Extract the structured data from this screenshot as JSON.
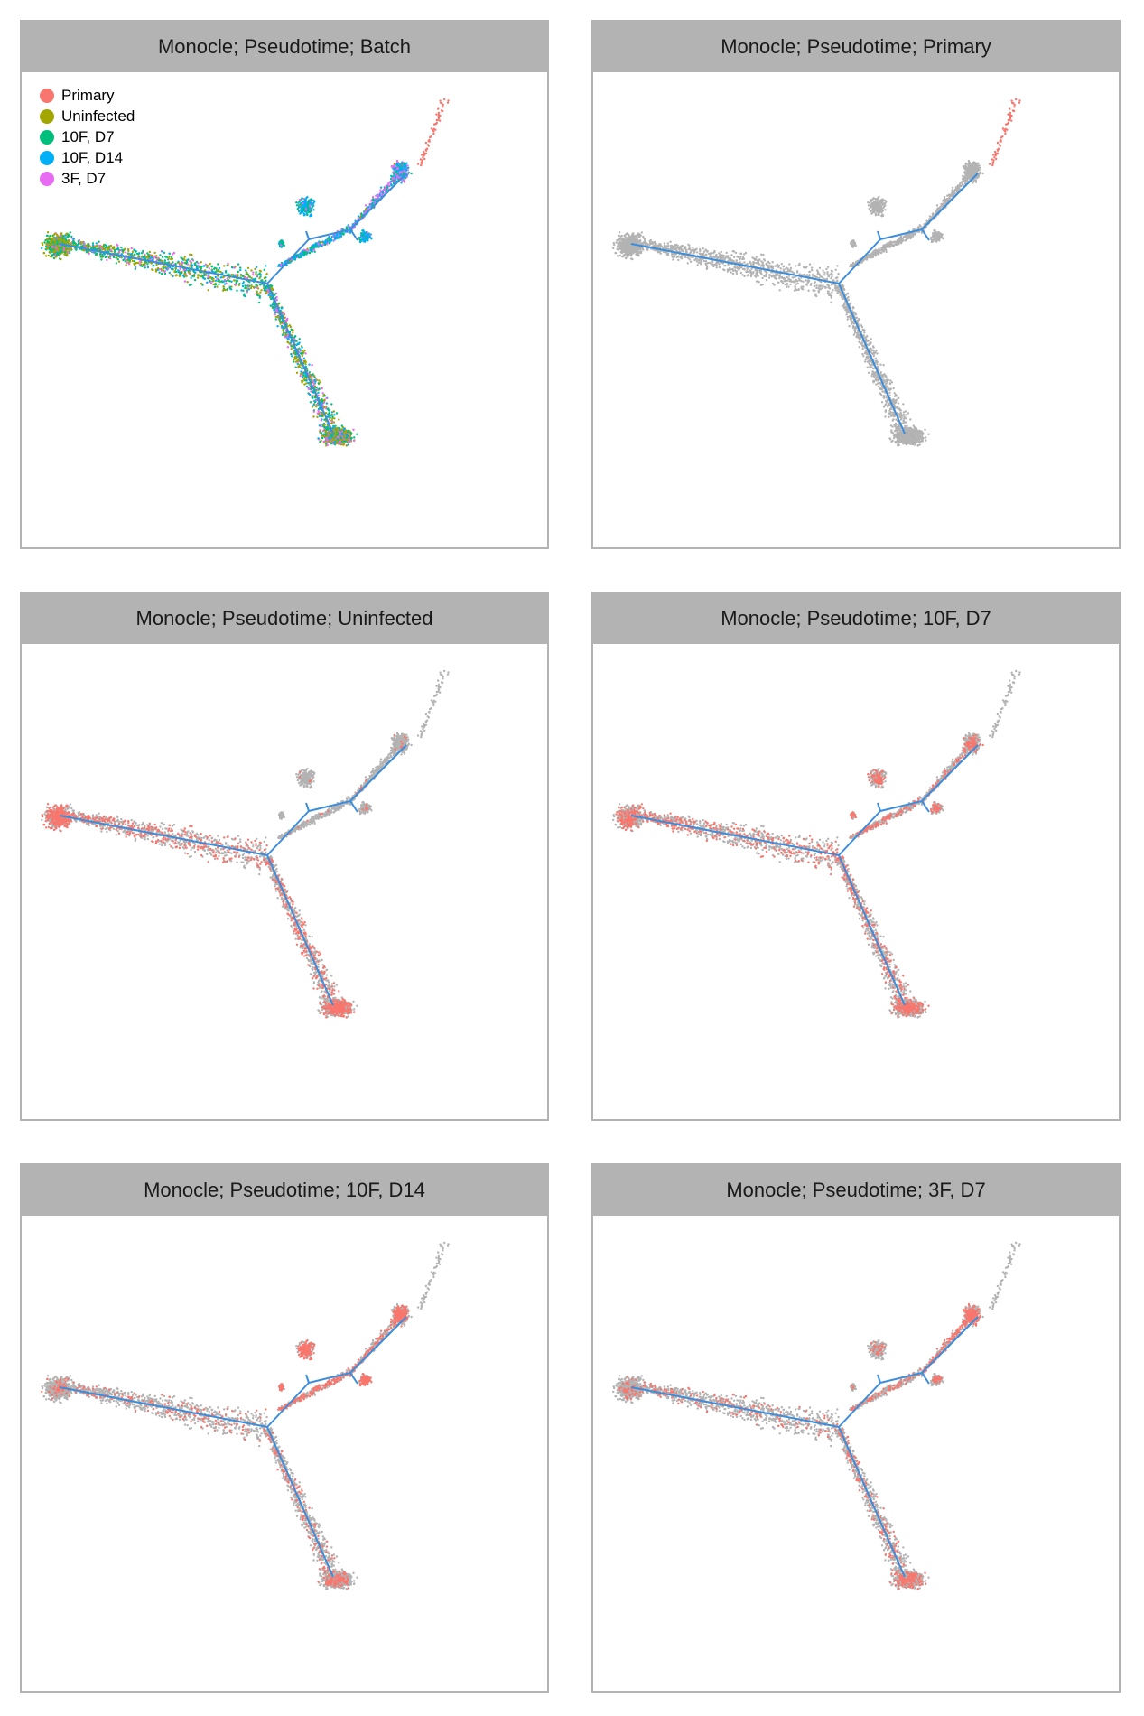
{
  "chart_data": [
    {
      "type": "scatter",
      "title": "Monocle; Pseudotime; Batch",
      "mode": "batch",
      "legend": {
        "placement": "top-left",
        "entries": [
          {
            "label": "Primary",
            "color": "#F8766D"
          },
          {
            "label": "Uninfected",
            "color": "#A3A500"
          },
          {
            "label": "10F, D7",
            "color": "#00BF7D"
          },
          {
            "label": "10F, D14",
            "color": "#00B0F6"
          },
          {
            "label": "3F, D7",
            "color": "#E76BF3"
          }
        ]
      }
    },
    {
      "type": "scatter",
      "title": "Monocle; Pseudotime; Primary",
      "mode": "highlight",
      "highlight": "Primary"
    },
    {
      "type": "scatter",
      "title": "Monocle; Pseudotime; Uninfected",
      "mode": "highlight",
      "highlight": "Uninfected"
    },
    {
      "type": "scatter",
      "title": "Monocle; Pseudotime; 10F, D7",
      "mode": "highlight",
      "highlight": "10F, D7"
    },
    {
      "type": "scatter",
      "title": "Monocle; Pseudotime; 10F, D14",
      "mode": "highlight",
      "highlight": "10F, D14"
    },
    {
      "type": "scatter",
      "title": "Monocle; Pseudotime; 3F, D7",
      "mode": "highlight",
      "highlight": "3F, D7"
    }
  ],
  "colors": {
    "highlight": "#F8766D",
    "background": "#b3b3b3",
    "tree": "#3C8DDC"
  }
}
